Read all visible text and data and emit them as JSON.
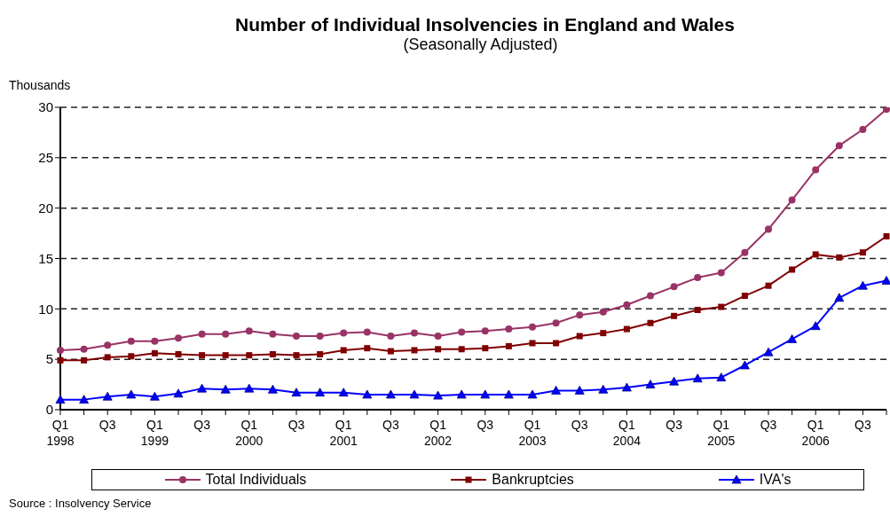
{
  "chart_data": {
    "type": "line",
    "title": "Number of Individual Insolvencies in England and Wales",
    "subtitle": "(Seasonally Adjusted)",
    "ylabel": "Thousands",
    "categories": [
      "Q1\n1998",
      null,
      "Q3",
      null,
      "Q1\n1999",
      null,
      "Q3",
      null,
      "Q1\n2000",
      null,
      "Q3",
      null,
      "Q1\n2001",
      null,
      "Q3",
      null,
      "Q1\n2002",
      null,
      "Q3",
      null,
      "Q1\n2003",
      null,
      "Q3",
      null,
      "Q1\n2004",
      null,
      "Q3",
      null,
      "Q1\n2005",
      null,
      "Q3",
      null,
      "Q1\n2006",
      null,
      "Q3",
      null
    ],
    "series": [
      {
        "name": "Total Individuals",
        "color": "#993366",
        "marker": "circle",
        "values": [
          5.9,
          6.0,
          6.4,
          6.8,
          6.8,
          7.1,
          7.5,
          7.5,
          7.8,
          7.5,
          7.3,
          7.3,
          7.6,
          7.7,
          7.3,
          7.6,
          7.3,
          7.7,
          7.8,
          8.0,
          8.2,
          8.6,
          9.4,
          9.7,
          10.4,
          11.3,
          12.2,
          13.1,
          13.6,
          15.6,
          17.9,
          20.8,
          23.8,
          26.2,
          27.8,
          29.8
        ]
      },
      {
        "name": "Bankruptcies",
        "color": "#800000",
        "marker": "square",
        "values": [
          4.9,
          4.9,
          5.2,
          5.3,
          5.6,
          5.5,
          5.4,
          5.4,
          5.4,
          5.5,
          5.4,
          5.5,
          5.9,
          6.1,
          5.8,
          5.9,
          6.0,
          6.0,
          6.1,
          6.3,
          6.6,
          6.6,
          7.3,
          7.6,
          8.0,
          8.6,
          9.3,
          9.9,
          10.2,
          11.3,
          12.3,
          13.9,
          15.4,
          15.1,
          15.6,
          17.2
        ]
      },
      {
        "name": "IVA's",
        "color": "#0000ff",
        "marker": "triangle",
        "values": [
          1.0,
          1.0,
          1.3,
          1.5,
          1.3,
          1.6,
          2.1,
          2.0,
          2.1,
          2.0,
          1.7,
          1.7,
          1.7,
          1.5,
          1.5,
          1.5,
          1.4,
          1.5,
          1.5,
          1.5,
          1.5,
          1.9,
          1.9,
          2.0,
          2.2,
          2.5,
          2.8,
          3.1,
          3.2,
          4.4,
          5.7,
          7.0,
          8.3,
          11.1,
          12.3,
          12.8
        ]
      }
    ],
    "ylim": [
      0,
      30
    ],
    "yticks": [
      0,
      5,
      10,
      15,
      20,
      25,
      30
    ],
    "grid": "y",
    "line_style": "solid",
    "legend": "bottom",
    "annotations": [
      "Source : Insolvency Service"
    ]
  }
}
